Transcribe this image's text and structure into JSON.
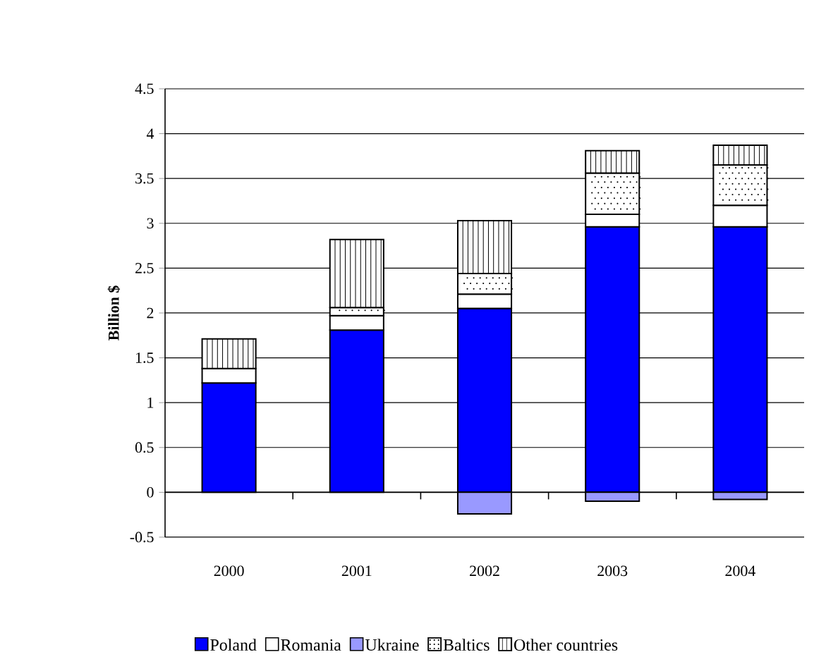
{
  "chart_data": {
    "type": "bar",
    "stacked": true,
    "ylabel": "Billion $",
    "categories": [
      "2000",
      "2001",
      "2002",
      "2003",
      "2004"
    ],
    "series": [
      {
        "name": "Poland",
        "color": "#0000ff",
        "values": [
          1.22,
          1.81,
          2.05,
          2.96,
          2.96
        ]
      },
      {
        "name": "Romania",
        "color": "#ffffff",
        "values": [
          0.16,
          0.16,
          0.16,
          0.14,
          0.24
        ]
      },
      {
        "name": "Ukraine",
        "color": "#9999ff",
        "values": [
          0,
          0,
          -0.24,
          -0.1,
          -0.08
        ]
      },
      {
        "name": "Baltics",
        "color": "#ffffff",
        "values": [
          0,
          0.09,
          0.23,
          0.46,
          0.45
        ]
      },
      {
        "name": "Other countries",
        "color": "#ffffff",
        "values": [
          0.33,
          0.76,
          0.59,
          0.25,
          0.22
        ]
      }
    ],
    "ylim": [
      -0.5,
      4.5
    ],
    "yticks": [
      -0.5,
      0,
      0.5,
      1,
      1.5,
      2,
      2.5,
      3,
      3.5,
      4,
      4.5
    ],
    "grid": "y",
    "legend": "bottom"
  }
}
